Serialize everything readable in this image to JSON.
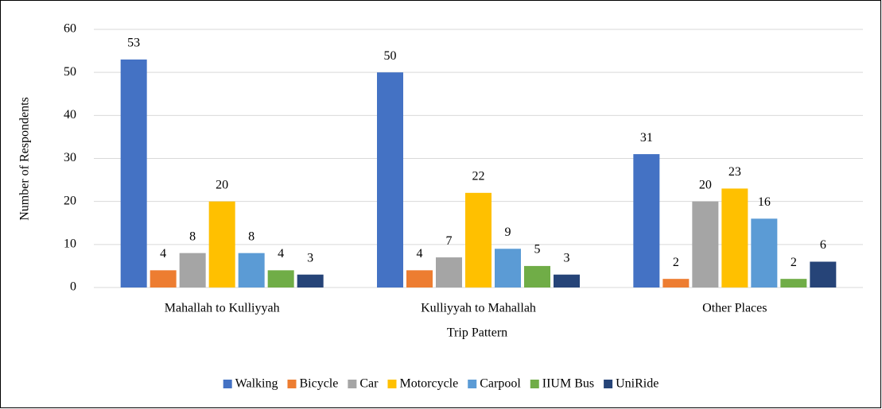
{
  "chart_data": {
    "type": "bar",
    "categories": [
      "Mahallah to Kulliyyah",
      "Kulliyyah to Mahallah",
      "Other Places"
    ],
    "series": [
      {
        "name": "Walking",
        "color": "#4472c4",
        "values": [
          53,
          50,
          31
        ]
      },
      {
        "name": "Bicycle",
        "color": "#ed7d31",
        "values": [
          4,
          4,
          2
        ]
      },
      {
        "name": "Car",
        "color": "#a5a5a5",
        "values": [
          8,
          7,
          20
        ]
      },
      {
        "name": "Motorcycle",
        "color": "#ffc000",
        "values": [
          20,
          22,
          23
        ]
      },
      {
        "name": "Carpool",
        "color": "#5b9bd5",
        "values": [
          8,
          9,
          16
        ]
      },
      {
        "name": "IIUM Bus",
        "color": "#70ad47",
        "values": [
          4,
          5,
          2
        ]
      },
      {
        "name": "UniRide",
        "color": "#264478",
        "values": [
          3,
          3,
          6
        ]
      }
    ],
    "x_label": "Trip Pattern",
    "y_label": "Number of Respondents",
    "ylim": [
      0,
      60
    ],
    "yticks": [
      0,
      10,
      20,
      30,
      40,
      50,
      60
    ],
    "grid": true,
    "legend": "bottom"
  }
}
